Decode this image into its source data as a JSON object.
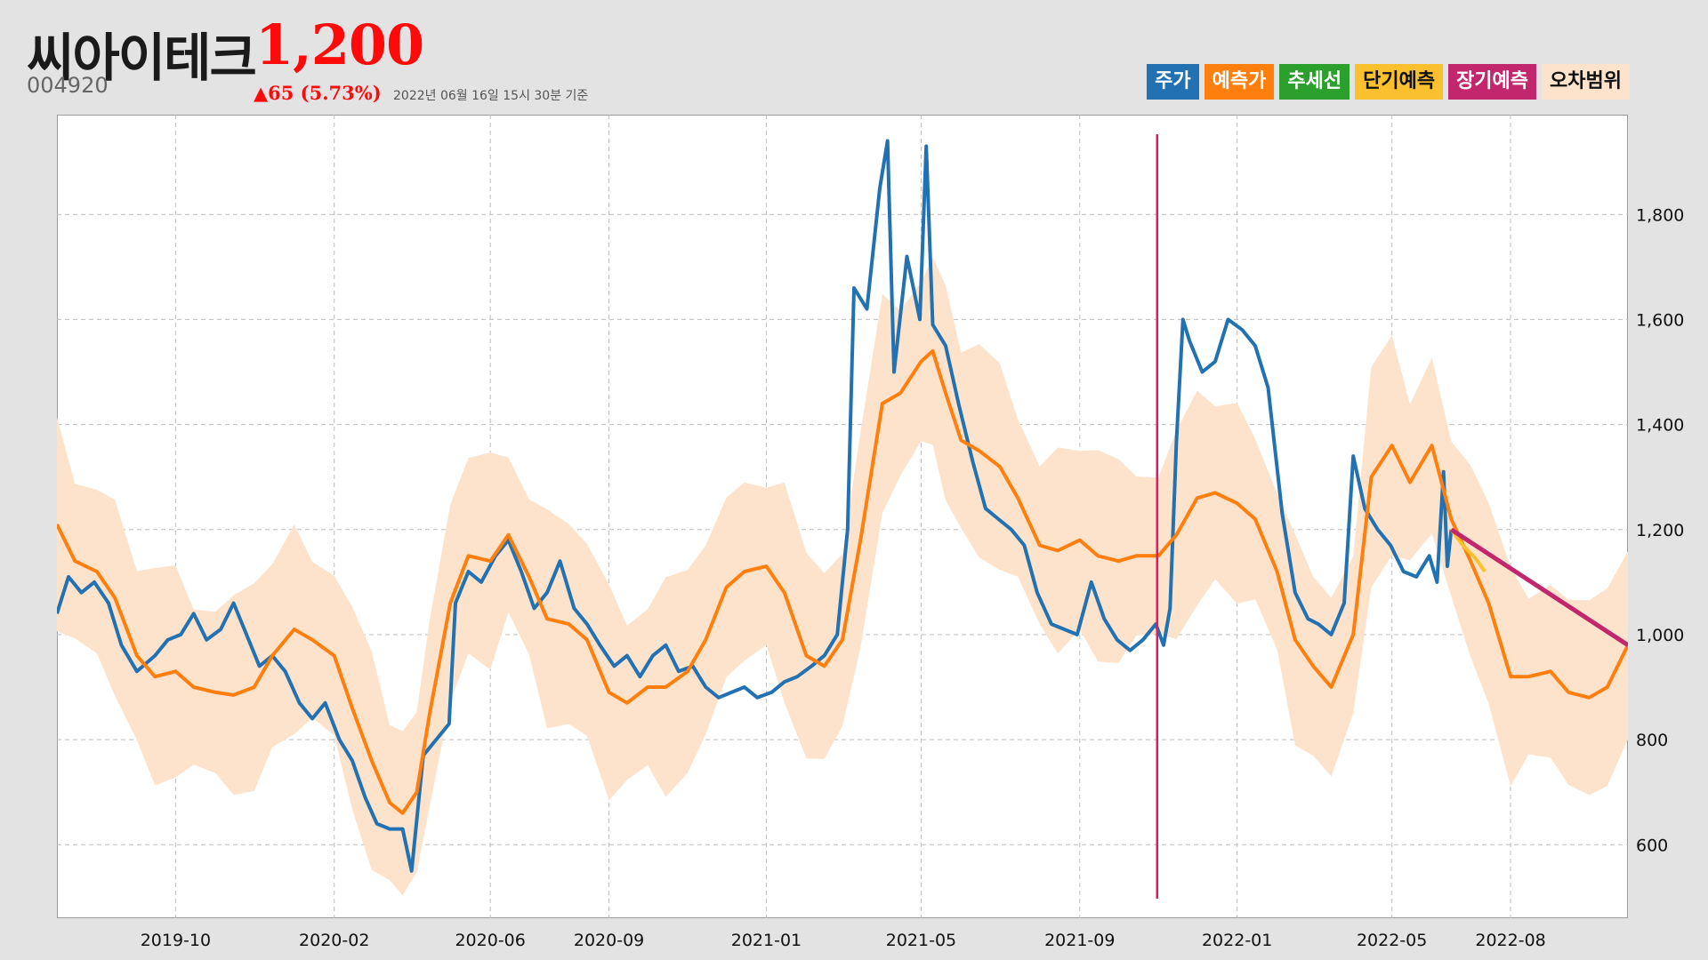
{
  "header": {
    "name": "씨아이테크",
    "price": "1,200",
    "code": "004920",
    "change": "▲65 (5.73%)",
    "as_of": "2022년 06월 16일 15시 30분 기준"
  },
  "legend": [
    {
      "label": "주가",
      "bg": "#2271b3",
      "fg": "#ffffff"
    },
    {
      "label": "예측가",
      "bg": "#ff7f0e",
      "fg": "#ffffff"
    },
    {
      "label": "추세선",
      "bg": "#2ca02c",
      "fg": "#ffffff"
    },
    {
      "label": "단기예측",
      "bg": "#fbc02d",
      "fg": "#111111"
    },
    {
      "label": "장기예측",
      "bg": "#c2266c",
      "fg": "#ffffff"
    },
    {
      "label": "오차범위",
      "bg": "#fde3cc",
      "fg": "#111111"
    }
  ],
  "chart_data": {
    "type": "line",
    "title": "",
    "x_range": [
      "2019-07-01",
      "2022-10-31"
    ],
    "ylim": [
      460,
      1990
    ],
    "y_ticks": [
      600,
      800,
      1000,
      1200,
      1400,
      1600,
      1800
    ],
    "y_tick_labels": [
      "600",
      "800",
      "1,000",
      "1,200",
      "1,400",
      "1,600",
      "1,800"
    ],
    "x_ticks": [
      "2019-10-01",
      "2020-02-01",
      "2020-06-01",
      "2020-09-01",
      "2021-01-01",
      "2021-05-01",
      "2021-09-01",
      "2022-01-01",
      "2022-05-01",
      "2022-08-01"
    ],
    "x_tick_labels": [
      "2019-10",
      "2020-02",
      "2020-06",
      "2020-09",
      "2021-01",
      "2021-05",
      "2021-09",
      "2022-01",
      "2022-05",
      "2022-08"
    ],
    "grid": true,
    "legend_position": "top-right",
    "vertical_marker": {
      "x": "2021-10-31",
      "color": "#e8175d"
    },
    "error_band_width": 210,
    "series": [
      {
        "name": "주가",
        "color": "#2271b3",
        "points": [
          [
            "2019-07-01",
            1040
          ],
          [
            "2019-07-10",
            1110
          ],
          [
            "2019-07-20",
            1080
          ],
          [
            "2019-07-30",
            1100
          ],
          [
            "2019-08-10",
            1060
          ],
          [
            "2019-08-20",
            980
          ],
          [
            "2019-09-01",
            930
          ],
          [
            "2019-09-15",
            960
          ],
          [
            "2019-09-25",
            990
          ],
          [
            "2019-10-05",
            1000
          ],
          [
            "2019-10-15",
            1040
          ],
          [
            "2019-10-25",
            990
          ],
          [
            "2019-11-05",
            1010
          ],
          [
            "2019-11-15",
            1060
          ],
          [
            "2019-11-25",
            1000
          ],
          [
            "2019-12-05",
            940
          ],
          [
            "2019-12-15",
            960
          ],
          [
            "2019-12-25",
            930
          ],
          [
            "2020-01-05",
            870
          ],
          [
            "2020-01-15",
            840
          ],
          [
            "2020-01-25",
            870
          ],
          [
            "2020-02-05",
            800
          ],
          [
            "2020-02-15",
            760
          ],
          [
            "2020-02-25",
            690
          ],
          [
            "2020-03-05",
            640
          ],
          [
            "2020-03-15",
            630
          ],
          [
            "2020-03-25",
            630
          ],
          [
            "2020-04-01",
            550
          ],
          [
            "2020-04-10",
            770
          ],
          [
            "2020-04-20",
            800
          ],
          [
            "2020-04-30",
            830
          ],
          [
            "2020-05-05",
            1060
          ],
          [
            "2020-05-15",
            1120
          ],
          [
            "2020-05-25",
            1100
          ],
          [
            "2020-06-05",
            1150
          ],
          [
            "2020-06-15",
            1180
          ],
          [
            "2020-06-25",
            1120
          ],
          [
            "2020-07-05",
            1050
          ],
          [
            "2020-07-15",
            1080
          ],
          [
            "2020-07-25",
            1140
          ],
          [
            "2020-08-05",
            1050
          ],
          [
            "2020-08-15",
            1020
          ],
          [
            "2020-08-25",
            980
          ],
          [
            "2020-09-05",
            940
          ],
          [
            "2020-09-15",
            960
          ],
          [
            "2020-09-25",
            920
          ],
          [
            "2020-10-05",
            960
          ],
          [
            "2020-10-15",
            980
          ],
          [
            "2020-10-25",
            930
          ],
          [
            "2020-11-05",
            940
          ],
          [
            "2020-11-15",
            900
          ],
          [
            "2020-11-25",
            880
          ],
          [
            "2020-12-05",
            890
          ],
          [
            "2020-12-15",
            900
          ],
          [
            "2020-12-25",
            880
          ],
          [
            "2021-01-05",
            890
          ],
          [
            "2021-01-15",
            910
          ],
          [
            "2021-01-25",
            920
          ],
          [
            "2021-02-05",
            940
          ],
          [
            "2021-02-15",
            960
          ],
          [
            "2021-02-25",
            1000
          ],
          [
            "2021-03-05",
            1200
          ],
          [
            "2021-03-10",
            1660
          ],
          [
            "2021-03-20",
            1620
          ],
          [
            "2021-03-30",
            1850
          ],
          [
            "2021-04-05",
            1940
          ],
          [
            "2021-04-10",
            1500
          ],
          [
            "2021-04-20",
            1720
          ],
          [
            "2021-04-30",
            1600
          ],
          [
            "2021-05-05",
            1930
          ],
          [
            "2021-05-10",
            1590
          ],
          [
            "2021-05-20",
            1550
          ],
          [
            "2021-05-30",
            1440
          ],
          [
            "2021-06-10",
            1330
          ],
          [
            "2021-06-20",
            1240
          ],
          [
            "2021-06-30",
            1220
          ],
          [
            "2021-07-10",
            1200
          ],
          [
            "2021-07-20",
            1170
          ],
          [
            "2021-07-30",
            1080
          ],
          [
            "2021-08-10",
            1020
          ],
          [
            "2021-08-20",
            1010
          ],
          [
            "2021-08-30",
            1000
          ],
          [
            "2021-09-10",
            1100
          ],
          [
            "2021-09-20",
            1030
          ],
          [
            "2021-09-30",
            990
          ],
          [
            "2021-10-10",
            970
          ],
          [
            "2021-10-20",
            990
          ],
          [
            "2021-10-30",
            1020
          ],
          [
            "2021-11-05",
            980
          ],
          [
            "2021-11-10",
            1050
          ],
          [
            "2021-11-15",
            1370
          ],
          [
            "2021-11-20",
            1600
          ],
          [
            "2021-11-25",
            1560
          ],
          [
            "2021-12-05",
            1500
          ],
          [
            "2021-12-15",
            1520
          ],
          [
            "2021-12-25",
            1600
          ],
          [
            "2022-01-05",
            1580
          ],
          [
            "2022-01-15",
            1550
          ],
          [
            "2022-01-25",
            1470
          ],
          [
            "2022-02-05",
            1230
          ],
          [
            "2022-02-15",
            1080
          ],
          [
            "2022-02-25",
            1030
          ],
          [
            "2022-03-05",
            1020
          ],
          [
            "2022-03-15",
            1000
          ],
          [
            "2022-03-25",
            1060
          ],
          [
            "2022-04-01",
            1340
          ],
          [
            "2022-04-10",
            1240
          ],
          [
            "2022-04-20",
            1200
          ],
          [
            "2022-04-30",
            1170
          ],
          [
            "2022-05-10",
            1120
          ],
          [
            "2022-05-20",
            1110
          ],
          [
            "2022-05-30",
            1150
          ],
          [
            "2022-06-05",
            1100
          ],
          [
            "2022-06-10",
            1310
          ],
          [
            "2022-06-13",
            1130
          ],
          [
            "2022-06-16",
            1200
          ]
        ]
      },
      {
        "name": "예측가",
        "color": "#ff7f0e",
        "points": [
          [
            "2019-07-01",
            1210
          ],
          [
            "2019-07-15",
            1140
          ],
          [
            "2019-08-01",
            1120
          ],
          [
            "2019-08-15",
            1070
          ],
          [
            "2019-09-01",
            960
          ],
          [
            "2019-09-15",
            920
          ],
          [
            "2019-10-01",
            930
          ],
          [
            "2019-10-15",
            900
          ],
          [
            "2019-11-01",
            890
          ],
          [
            "2019-11-15",
            885
          ],
          [
            "2019-12-01",
            900
          ],
          [
            "2019-12-15",
            960
          ],
          [
            "2020-01-01",
            1010
          ],
          [
            "2020-01-15",
            990
          ],
          [
            "2020-02-01",
            960
          ],
          [
            "2020-02-15",
            860
          ],
          [
            "2020-03-01",
            760
          ],
          [
            "2020-03-15",
            680
          ],
          [
            "2020-03-25",
            660
          ],
          [
            "2020-04-05",
            700
          ],
          [
            "2020-04-15",
            850
          ],
          [
            "2020-05-01",
            1060
          ],
          [
            "2020-05-15",
            1150
          ],
          [
            "2020-06-01",
            1140
          ],
          [
            "2020-06-15",
            1190
          ],
          [
            "2020-07-01",
            1110
          ],
          [
            "2020-07-15",
            1030
          ],
          [
            "2020-08-01",
            1020
          ],
          [
            "2020-08-15",
            990
          ],
          [
            "2020-09-01",
            890
          ],
          [
            "2020-09-15",
            870
          ],
          [
            "2020-10-01",
            900
          ],
          [
            "2020-10-15",
            900
          ],
          [
            "2020-11-01",
            930
          ],
          [
            "2020-11-15",
            990
          ],
          [
            "2020-12-01",
            1090
          ],
          [
            "2020-12-15",
            1120
          ],
          [
            "2021-01-01",
            1130
          ],
          [
            "2021-01-15",
            1080
          ],
          [
            "2021-02-01",
            960
          ],
          [
            "2021-02-15",
            940
          ],
          [
            "2021-03-01",
            990
          ],
          [
            "2021-03-15",
            1180
          ],
          [
            "2021-04-01",
            1440
          ],
          [
            "2021-04-15",
            1460
          ],
          [
            "2021-05-01",
            1520
          ],
          [
            "2021-05-10",
            1540
          ],
          [
            "2021-05-20",
            1460
          ],
          [
            "2021-06-01",
            1370
          ],
          [
            "2021-06-15",
            1350
          ],
          [
            "2021-07-01",
            1320
          ],
          [
            "2021-07-15",
            1260
          ],
          [
            "2021-08-01",
            1170
          ],
          [
            "2021-08-15",
            1160
          ],
          [
            "2021-09-01",
            1180
          ],
          [
            "2021-09-15",
            1150
          ],
          [
            "2021-10-01",
            1140
          ],
          [
            "2021-10-15",
            1150
          ],
          [
            "2021-11-01",
            1150
          ],
          [
            "2021-11-15",
            1190
          ],
          [
            "2021-12-01",
            1260
          ],
          [
            "2021-12-15",
            1270
          ],
          [
            "2022-01-01",
            1250
          ],
          [
            "2022-01-15",
            1220
          ],
          [
            "2022-02-01",
            1120
          ],
          [
            "2022-02-15",
            990
          ],
          [
            "2022-03-01",
            940
          ],
          [
            "2022-03-15",
            900
          ],
          [
            "2022-04-01",
            1000
          ],
          [
            "2022-04-15",
            1300
          ],
          [
            "2022-05-01",
            1360
          ],
          [
            "2022-05-15",
            1290
          ],
          [
            "2022-06-01",
            1360
          ],
          [
            "2022-06-16",
            1220
          ],
          [
            "2022-07-01",
            1140
          ],
          [
            "2022-07-15",
            1060
          ],
          [
            "2022-08-01",
            920
          ],
          [
            "2022-08-15",
            920
          ],
          [
            "2022-09-01",
            930
          ],
          [
            "2022-09-15",
            890
          ],
          [
            "2022-10-01",
            880
          ],
          [
            "2022-10-15",
            900
          ],
          [
            "2022-10-31",
            980
          ]
        ]
      },
      {
        "name": "단기예측",
        "color": "#fbc02d",
        "points": [
          [
            "2022-06-16",
            1200
          ],
          [
            "2022-06-25",
            1170
          ],
          [
            "2022-07-05",
            1145
          ],
          [
            "2022-07-12",
            1120
          ]
        ]
      },
      {
        "name": "장기예측",
        "color": "#c2266c",
        "points": [
          [
            "2022-06-16",
            1200
          ],
          [
            "2022-10-31",
            980
          ]
        ]
      }
    ]
  }
}
